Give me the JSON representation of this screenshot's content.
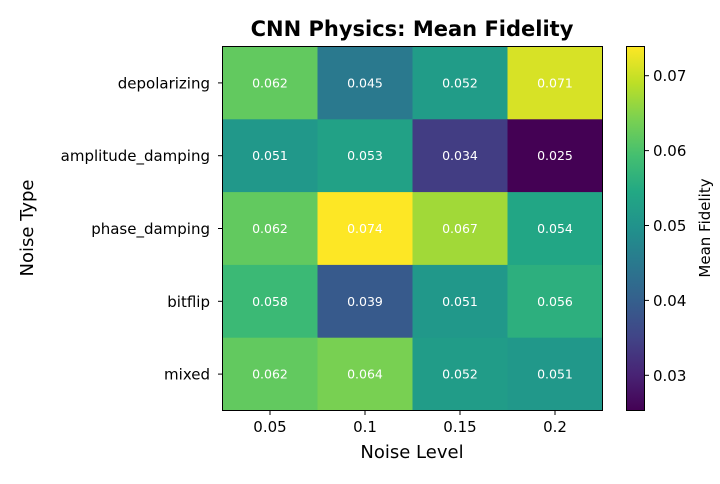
{
  "chart_data": {
    "type": "heatmap",
    "title": "CNN Physics: Mean Fidelity",
    "xlabel": "Noise Level",
    "ylabel": "Noise Type",
    "x_categories": [
      "0.05",
      "0.1",
      "0.15",
      "0.2"
    ],
    "y_categories": [
      "depolarizing",
      "amplitude_damping",
      "phase_damping",
      "bitflip",
      "mixed"
    ],
    "values": [
      [
        0.062,
        0.045,
        0.052,
        0.071
      ],
      [
        0.051,
        0.053,
        0.034,
        0.025
      ],
      [
        0.062,
        0.074,
        0.067,
        0.054
      ],
      [
        0.058,
        0.039,
        0.051,
        0.056
      ],
      [
        0.062,
        0.064,
        0.052,
        0.051
      ]
    ],
    "colormap": "viridis",
    "colorbar": {
      "label": "Mean Fidelity",
      "range": [
        0.0253,
        0.0739
      ],
      "ticks": [
        "0.03",
        "0.04",
        "0.05",
        "0.06",
        "0.07"
      ]
    },
    "annotation_color": "#ffffff",
    "grid": false
  }
}
